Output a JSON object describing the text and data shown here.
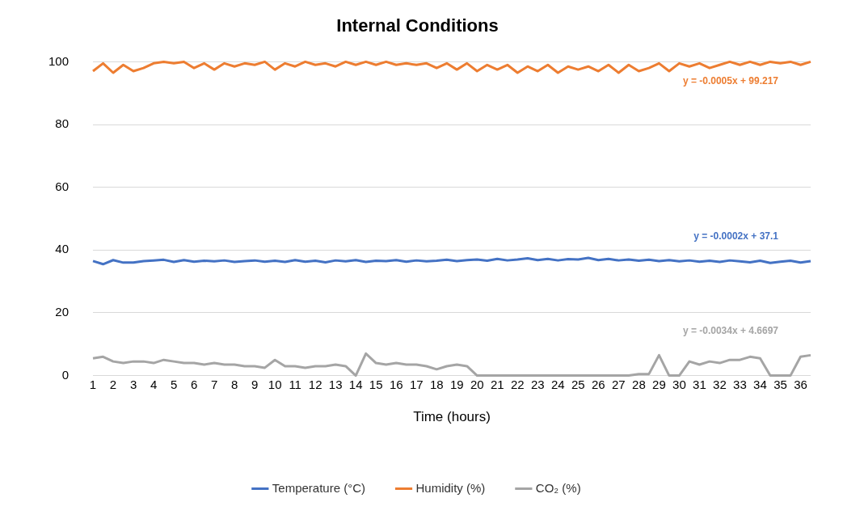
{
  "chart_data": {
    "type": "line",
    "title": "Internal Conditions",
    "xlabel": "Time (hours)",
    "x": [
      1,
      1.5,
      2,
      2.5,
      3,
      3.5,
      4,
      4.5,
      5,
      5.5,
      6,
      6.5,
      7,
      7.5,
      8,
      8.5,
      9,
      9.5,
      10,
      10.5,
      11,
      11.5,
      12,
      12.5,
      13,
      13.5,
      14,
      14.5,
      15,
      15.5,
      16,
      16.5,
      17,
      17.5,
      18,
      18.5,
      19,
      19.5,
      20,
      20.5,
      21,
      21.5,
      22,
      22.5,
      23,
      23.5,
      24,
      24.5,
      25,
      25.5,
      26,
      26.5,
      27,
      27.5,
      28,
      28.5,
      29,
      29.5,
      30,
      30.5,
      31,
      31.5,
      32,
      32.5,
      33,
      33.5,
      34,
      34.5,
      35,
      35.5,
      36,
      36.5
    ],
    "series": [
      {
        "name": "Temperature (°C)",
        "color": "#4472c4",
        "values": [
          36.5,
          35.5,
          36.8,
          36,
          36,
          36.5,
          36.7,
          36.9,
          36.2,
          36.8,
          36.3,
          36.6,
          36.4,
          36.7,
          36.2,
          36.5,
          36.7,
          36.3,
          36.6,
          36.2,
          36.8,
          36.3,
          36.6,
          36.1,
          36.7,
          36.4,
          36.8,
          36.2,
          36.6,
          36.5,
          36.8,
          36.3,
          36.7,
          36.4,
          36.6,
          36.9,
          36.5,
          36.8,
          37,
          36.6,
          37.2,
          36.7,
          37,
          37.4,
          36.8,
          37.2,
          36.7,
          37.1,
          37,
          37.5,
          36.8,
          37.2,
          36.7,
          37,
          36.6,
          36.9,
          36.5,
          36.8,
          36.4,
          36.7,
          36.3,
          36.6,
          36.2,
          36.7,
          36.4,
          36.1,
          36.6,
          35.9,
          36.3,
          36.6,
          36,
          36.5
        ]
      },
      {
        "name": "Humidity (%)",
        "color": "#ed7d31",
        "values": [
          97,
          99.5,
          96.5,
          99,
          97,
          98,
          99.5,
          100,
          99.5,
          100,
          98,
          99.5,
          97.5,
          99.5,
          98.5,
          99.5,
          99,
          100,
          97.5,
          99.5,
          98.5,
          100,
          99,
          99.5,
          98.5,
          100,
          99,
          100,
          99,
          100,
          99,
          99.5,
          99,
          99.5,
          98,
          99.5,
          97.5,
          99.5,
          97,
          99,
          97.5,
          99,
          96.5,
          98.5,
          97,
          99,
          96.5,
          98.5,
          97.5,
          98.5,
          97,
          99,
          96.5,
          99,
          97,
          98,
          99.5,
          97,
          99.5,
          98.5,
          99.5,
          98,
          99,
          100,
          99,
          100,
          99,
          100,
          99.5,
          100,
          99,
          100
        ]
      },
      {
        "name": "CO₂ (%)",
        "color": "#a5a5a5",
        "values": [
          5.5,
          6,
          4.5,
          4,
          4.5,
          4.5,
          4,
          5,
          4.5,
          4,
          4,
          3.5,
          4,
          3.5,
          3.5,
          3,
          3,
          2.5,
          5,
          3,
          3,
          2.5,
          3,
          3,
          3.5,
          3,
          0,
          7,
          4,
          3.5,
          4,
          3.5,
          3.5,
          3,
          2,
          3,
          3.5,
          3,
          0,
          0,
          0,
          0,
          0,
          0,
          0,
          0,
          0,
          0,
          0,
          0,
          0,
          0,
          0,
          0,
          0.5,
          0.5,
          6.5,
          0,
          0,
          4.5,
          3.5,
          4.5,
          4,
          5,
          5,
          6,
          5.5,
          0,
          0,
          0,
          6,
          6.5
        ]
      }
    ],
    "xlim": [
      1,
      36.5
    ],
    "xticks": [
      1,
      2,
      3,
      4,
      5,
      6,
      7,
      8,
      9,
      10,
      11,
      12,
      13,
      14,
      15,
      16,
      17,
      18,
      19,
      20,
      21,
      22,
      23,
      24,
      25,
      26,
      27,
      28,
      29,
      30,
      31,
      32,
      33,
      34,
      35,
      36
    ],
    "ylim": [
      0,
      100
    ],
    "yticks": [
      0,
      20,
      40,
      60,
      80,
      100
    ],
    "grid": "y",
    "legend": "bottom",
    "marker": "none",
    "line_style": "solid",
    "annotations": [
      "y = -0.0002x + 37.1",
      "y = -0.0005x + 99.217",
      "y = -0.0034x + 4.6697"
    ]
  }
}
